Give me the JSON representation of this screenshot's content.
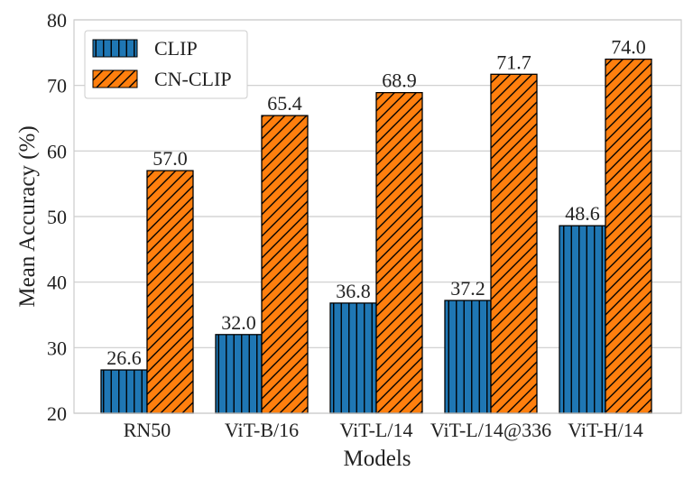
{
  "chart_data": {
    "type": "bar",
    "categories": [
      "RN50",
      "ViT-B/16",
      "ViT-L/14",
      "ViT-L/14@336",
      "ViT-H/14"
    ],
    "series": [
      {
        "name": "CLIP",
        "values": [
          26.6,
          32.0,
          36.8,
          37.2,
          48.6
        ],
        "color": "#1f77b4",
        "hatch": "vertical"
      },
      {
        "name": "CN-CLIP",
        "values": [
          57.0,
          65.4,
          68.9,
          71.7,
          74.0
        ],
        "color": "#ff7f0e",
        "hatch": "diagonal"
      }
    ],
    "data_labels": [
      [
        "26.6",
        "32.0",
        "36.8",
        "37.2",
        "48.6"
      ],
      [
        "57.0",
        "65.4",
        "68.9",
        "71.7",
        "74.0"
      ]
    ],
    "xlabel": "Models",
    "ylabel": "Mean Accuracy (%)",
    "ylim": [
      20,
      80
    ],
    "yticks": [
      "20",
      "30",
      "40",
      "50",
      "60",
      "70",
      "80"
    ],
    "grid": "horizontal",
    "legend": "top-left"
  }
}
